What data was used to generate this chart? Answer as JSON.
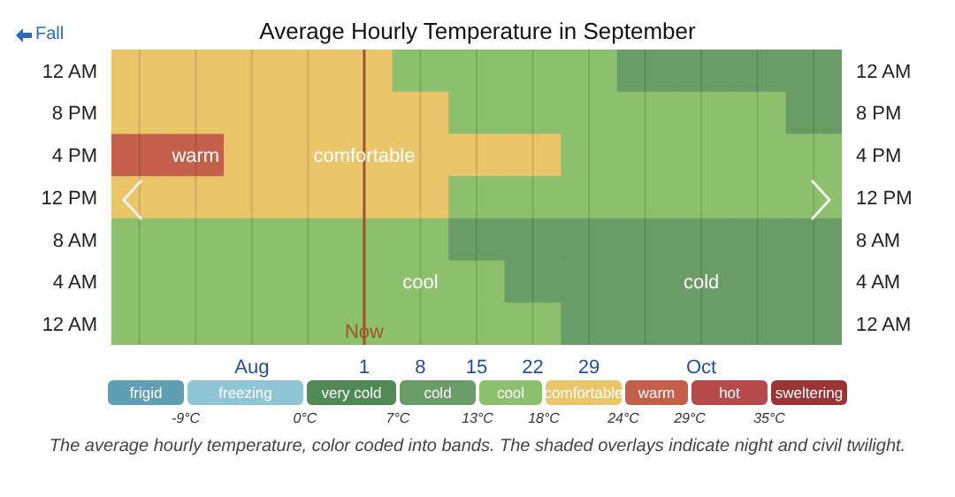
{
  "chart_data": {
    "type": "heatmap",
    "title": "Average Hourly Temperature in September",
    "categories": [
      null,
      null,
      "Aug",
      null,
      "1",
      "8",
      "15",
      "22",
      "29",
      null,
      "Oct",
      null,
      null
    ],
    "y_categories": [
      "12 AM",
      "8 PM",
      "4 PM",
      "12 PM",
      "8 AM",
      "4 AM",
      "12 AM"
    ],
    "y2_categories": [
      "12 AM",
      "8 PM",
      "4 PM",
      "12 PM",
      "8 AM",
      "4 AM",
      "12 AM"
    ],
    "cells": [
      [
        21,
        21,
        21,
        21,
        21,
        15.5,
        15.5,
        15.5,
        15.5,
        10,
        10,
        10,
        10
      ],
      [
        21,
        21,
        21,
        21,
        21,
        21,
        15.5,
        15.5,
        15.5,
        15.5,
        15.5,
        15.5,
        10
      ],
      [
        26.5,
        26.5,
        21,
        21,
        21,
        21,
        21,
        21,
        15.5,
        15.5,
        15.5,
        15.5,
        15.5
      ],
      [
        21,
        21,
        21,
        21,
        21,
        21,
        15.5,
        15.5,
        15.5,
        15.5,
        15.5,
        15.5,
        15.5
      ],
      [
        15.5,
        15.5,
        15.5,
        15.5,
        15.5,
        15.5,
        10,
        10,
        10,
        10,
        10,
        10,
        10
      ],
      [
        15.5,
        15.5,
        15.5,
        15.5,
        15.5,
        15.5,
        15.5,
        10,
        10,
        10,
        10,
        10,
        10
      ],
      [
        15.5,
        15.5,
        15.5,
        15.5,
        15.5,
        15.5,
        15.5,
        15.5,
        10,
        10,
        10,
        10,
        10
      ]
    ],
    "cell_labels": [
      [
        null,
        null,
        null,
        null,
        null,
        null,
        null,
        null,
        null,
        null,
        null,
        null,
        null
      ],
      [
        null,
        null,
        null,
        null,
        null,
        null,
        null,
        null,
        null,
        null,
        null,
        null,
        null
      ],
      [
        null,
        "warm",
        null,
        null,
        "comfortable",
        null,
        null,
        null,
        null,
        null,
        null,
        null,
        null
      ],
      [
        null,
        null,
        null,
        null,
        null,
        null,
        null,
        null,
        null,
        null,
        null,
        null,
        null
      ],
      [
        null,
        null,
        null,
        null,
        null,
        null,
        null,
        null,
        null,
        null,
        null,
        null,
        null
      ],
      [
        null,
        null,
        null,
        null,
        null,
        "cool",
        null,
        null,
        null,
        null,
        "cold",
        null,
        null
      ],
      [
        null,
        null,
        null,
        null,
        null,
        null,
        null,
        null,
        null,
        null,
        null,
        null,
        null
      ]
    ],
    "clim": [
      -15,
      41
    ],
    "cticks": [
      {
        "value": -9,
        "label": "-9°C"
      },
      {
        "value": 0,
        "label": "0°C"
      },
      {
        "value": 7,
        "label": "7°C"
      },
      {
        "value": 13,
        "label": "13°C"
      },
      {
        "value": 18,
        "label": "18°C"
      },
      {
        "value": 24,
        "label": "24°C"
      },
      {
        "value": 29,
        "label": "29°C"
      },
      {
        "value": 35,
        "label": "35°C"
      }
    ],
    "colors": [
      "#5f9fb3",
      "#8ec6d6",
      "#4f8a55",
      "#6a9c68",
      "#8cc06c",
      "#ebc56a",
      "#c4604a",
      "#b54a4a",
      "#9b3535"
    ],
    "grid": "x",
    "ref_lines": [
      {
        "axis": "x",
        "value": "1",
        "label": "Now",
        "color": "#a0522d"
      }
    ],
    "annotations": [
      "Fall",
      "The average hourly temperature, color coded into bands. The shaded overlays indicate night and civil twilight.",
      "frigid",
      "freezing",
      "very cold",
      "cold",
      "cool",
      "comfortable",
      "warm",
      "hot",
      "sweltering"
    ]
  }
}
